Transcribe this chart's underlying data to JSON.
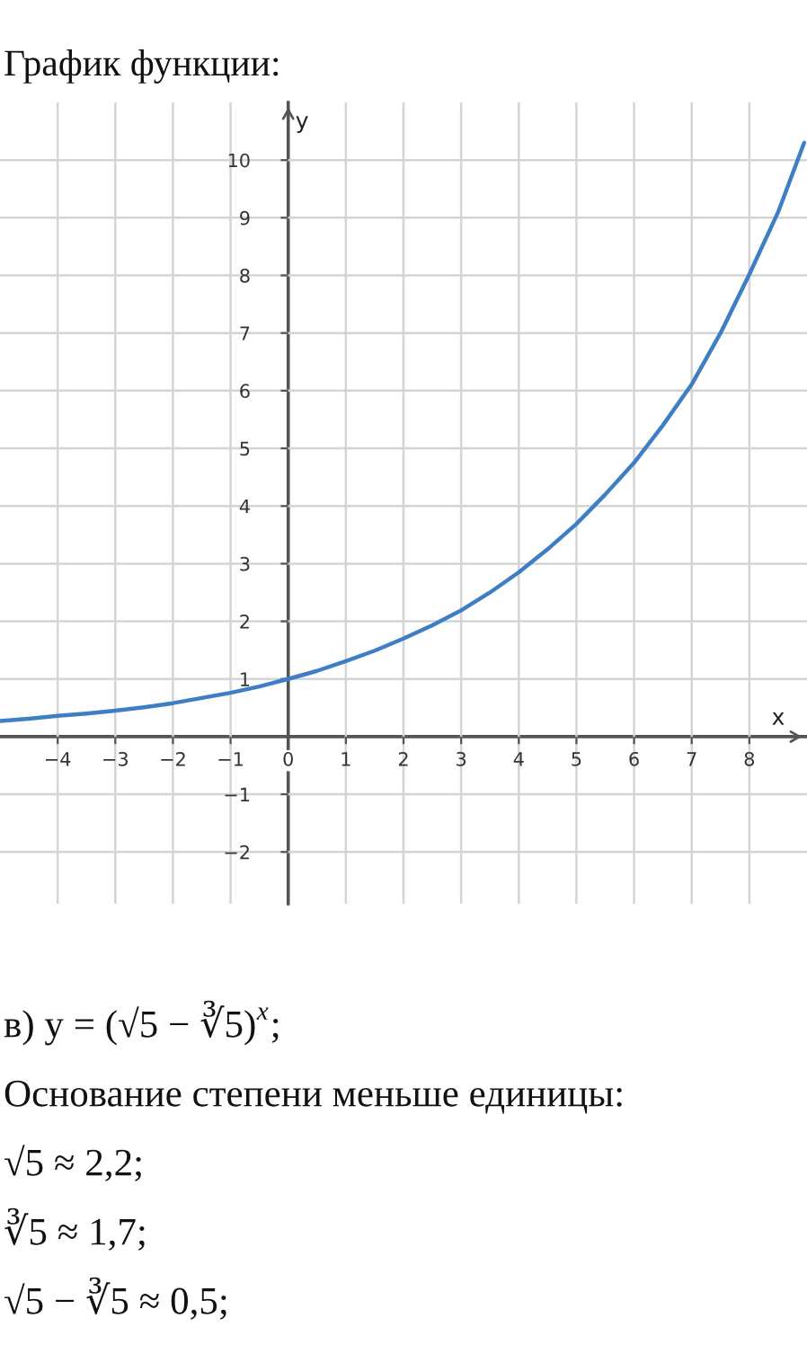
{
  "chart_data": {
    "type": "line",
    "title": "График функции:",
    "xlabel": "x",
    "ylabel": "y",
    "x": [
      -5,
      -4.5,
      -4,
      -3.5,
      -3,
      -2.5,
      -2,
      -1.5,
      -1,
      -0.5,
      0,
      0.5,
      1,
      1.5,
      2,
      2.5,
      3,
      3.5,
      4,
      4.5,
      5,
      5.5,
      6,
      6.5,
      7,
      7.5,
      8,
      8.5,
      8.95
    ],
    "series": [
      {
        "color": "#3e7ec4",
        "values": [
          0.27,
          0.31,
          0.36,
          0.4,
          0.45,
          0.51,
          0.58,
          0.67,
          0.76,
          0.87,
          1.0,
          1.14,
          1.31,
          1.49,
          1.7,
          1.93,
          2.19,
          2.5,
          2.85,
          3.25,
          3.69,
          4.2,
          4.75,
          5.4,
          6.11,
          7.0,
          8.02,
          9.1,
          10.3
        ]
      }
    ],
    "xlim": [
      -5,
      9
    ],
    "ylim": [
      -2.9,
      11
    ],
    "xticks": [
      {
        "value": -4,
        "label": "−4"
      },
      {
        "value": -3,
        "label": "−3"
      },
      {
        "value": -2,
        "label": "−2"
      },
      {
        "value": -1,
        "label": "−1"
      },
      0,
      1,
      2,
      3,
      4,
      5,
      6,
      7,
      8
    ],
    "yticks": [
      {
        "value": -2,
        "label": "−2"
      },
      {
        "value": -1,
        "label": "−1"
      },
      1,
      2,
      3,
      4,
      5,
      6,
      7,
      8,
      9,
      10
    ],
    "grid": true,
    "annotations": [
      "в) y = (√5 − ∛5)$^{x}$;",
      "Основание степени меньше единицы:",
      "√5 ≈ 2,2;",
      "∛5 ≈ 1,7;",
      "√5 − ∛5 ≈ 0,5;"
    ]
  }
}
